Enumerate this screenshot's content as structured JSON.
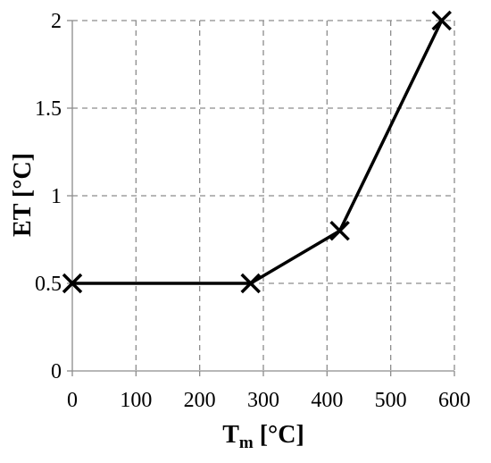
{
  "chart_data": {
    "type": "line",
    "title": "",
    "xlabel": "T",
    "xlabel_subscript": "m",
    "xlabel_unit": " [°C]",
    "ylabel": "ET [°C]",
    "xlim": [
      0,
      600
    ],
    "ylim": [
      0,
      2
    ],
    "xticks": [
      0,
      100,
      200,
      300,
      400,
      500,
      600
    ],
    "yticks": [
      0,
      0.5,
      1,
      1.5,
      2
    ],
    "xtick_labels": [
      "0",
      "100",
      "200",
      "300",
      "400",
      "500",
      "600"
    ],
    "ytick_labels": [
      "0",
      "0.5",
      "1",
      "1.5",
      "2"
    ],
    "grid": true,
    "grid_style": "dashed",
    "marker": "x",
    "series": [
      {
        "x": [
          0,
          280,
          420,
          580
        ],
        "y": [
          0.5,
          0.5,
          0.8,
          2.0
        ],
        "color": "#000000"
      }
    ]
  }
}
